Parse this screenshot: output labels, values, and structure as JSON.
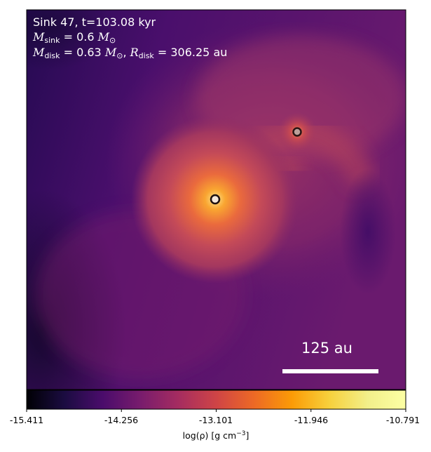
{
  "annotations": {
    "line1": "Sink 47, t=103.08 kyr",
    "mass_sink_sym": "M",
    "mass_sink_sub": "sink",
    "mass_sink_eq": " = 0.6 ",
    "mass_sink_unit": "M",
    "mass_sink_unit_sub": "⊙",
    "mass_disk_sym": "M",
    "mass_disk_sub": "disk",
    "mass_disk_eq": " = 0.63 ",
    "mass_disk_unit": "M",
    "mass_disk_unit_sub": "⊙",
    "radius_sep": ", ",
    "radius_sym": "R",
    "radius_sub": "disk",
    "radius_eq": " = 306.25 au"
  },
  "scale_bar": {
    "label": "125 au",
    "length_au": 125
  },
  "colorbar": {
    "colormap": "inferno",
    "min": -15.411,
    "max": -10.791,
    "ticks": [
      "-15.411",
      "-14.256",
      "-13.101",
      "-11.946",
      "-10.791"
    ],
    "label_pre": "log(ρ) [g cm",
    "label_sup": "−3",
    "label_post": "]"
  },
  "sinks": [
    {
      "name": "primary sink",
      "fill": "#f5e9dc",
      "ring": "#1e1210"
    },
    {
      "name": "secondary sink",
      "fill": "#bba09a",
      "ring": "#2a1515"
    }
  ]
}
